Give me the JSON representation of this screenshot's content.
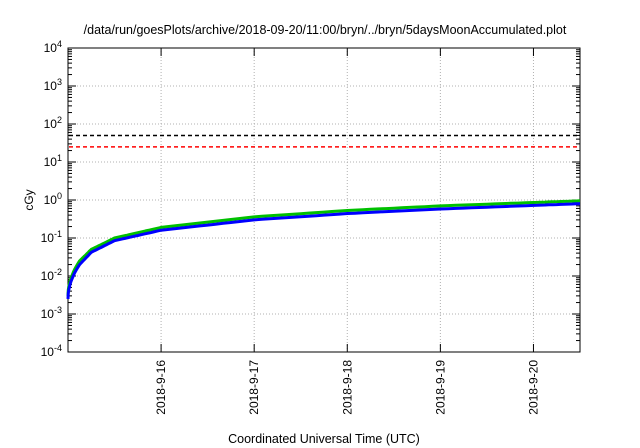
{
  "chart_data": {
    "type": "line",
    "title": "/data/run/goesPlots/archive/2018-09-20/11:00/bryn/../bryn/5daysMoonAccumulated.plot",
    "xlabel": "Coordinated Universal Time (UTC)",
    "ylabel": "cGy",
    "x_ticks": [
      "2018-9-16",
      "2018-9-17",
      "2018-9-18",
      "2018-9-19",
      "2018-9-20"
    ],
    "x_range": [
      "2018-09-15 00:00",
      "2018-09-20 12:00"
    ],
    "y_scale": "log",
    "ylim": [
      0.0001,
      10000
    ],
    "y_ticks": [
      {
        "base": "10",
        "exp": "-4"
      },
      {
        "base": "10",
        "exp": "-3"
      },
      {
        "base": "10",
        "exp": "-2"
      },
      {
        "base": "10",
        "exp": "-1"
      },
      {
        "base": "10",
        "exp": "0"
      },
      {
        "base": "10",
        "exp": "1"
      },
      {
        "base": "10",
        "exp": "2"
      },
      {
        "base": "10",
        "exp": "3"
      },
      {
        "base": "10",
        "exp": "4"
      }
    ],
    "grid": true,
    "reference_lines": [
      {
        "y": 50,
        "color": "#000000",
        "style": "dashed"
      },
      {
        "y": 25,
        "color": "#ff0000",
        "style": "dashed"
      }
    ],
    "series": [
      {
        "color": "#00c000",
        "x": [
          "2018-09-15 00:00",
          "2018-09-15 03:00",
          "2018-09-15 06:00",
          "2018-09-15 12:00",
          "2018-09-16 00:00",
          "2018-09-17 00:00",
          "2018-09-18 00:00",
          "2018-09-19 00:00",
          "2018-09-20 00:00",
          "2018-09-20 12:00"
        ],
        "y": [
          0.003,
          0.025,
          0.05,
          0.1,
          0.19,
          0.36,
          0.53,
          0.7,
          0.86,
          0.95
        ]
      },
      {
        "color": "#0000ff",
        "x": [
          "2018-09-15 00:00",
          "2018-09-15 03:00",
          "2018-09-15 06:00",
          "2018-09-15 12:00",
          "2018-09-16 00:00",
          "2018-09-17 00:00",
          "2018-09-18 00:00",
          "2018-09-19 00:00",
          "2018-09-20 00:00",
          "2018-09-20 12:00"
        ],
        "y": [
          0.0025,
          0.02,
          0.042,
          0.085,
          0.16,
          0.3,
          0.44,
          0.58,
          0.72,
          0.8
        ]
      }
    ]
  }
}
